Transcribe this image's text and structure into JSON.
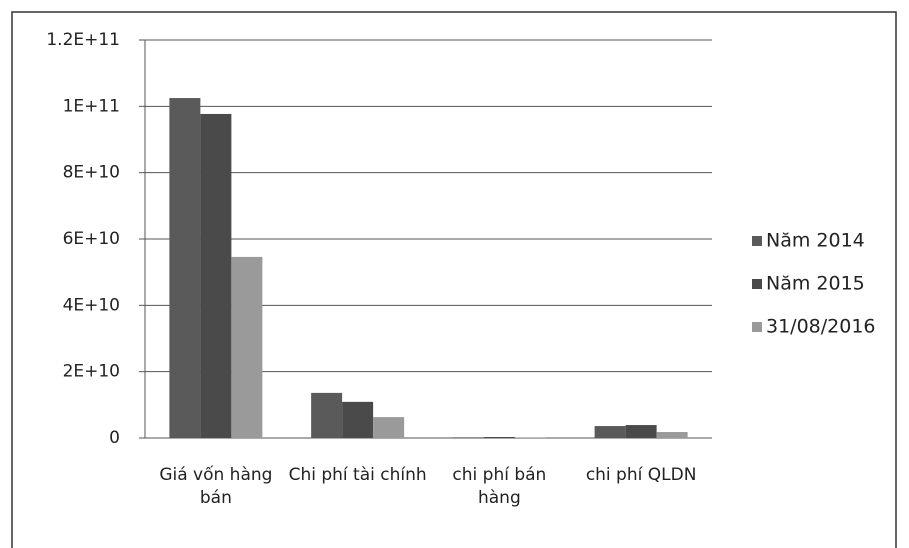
{
  "chart_data": {
    "type": "bar",
    "categories": [
      "Giá vốn hàng bán",
      "Chi phí tài chính",
      "chi phí bán hàng",
      "chi phí QLDN"
    ],
    "series": [
      {
        "name": "Năm 2014",
        "color": "#5a5a5a",
        "values": [
          102500000000,
          13600000000,
          200000000,
          3600000000
        ]
      },
      {
        "name": "Năm 2015",
        "color": "#4a4a4a",
        "values": [
          97700000000,
          10900000000,
          300000000,
          3900000000
        ]
      },
      {
        "name": "31/08/2016",
        "color": "#9a9a9a",
        "values": [
          54600000000,
          6300000000,
          100000000,
          1800000000
        ]
      }
    ],
    "ylim": [
      0,
      120000000000
    ],
    "yticks": [
      0,
      {
        "value": 20000000000,
        "label": "2E+10"
      },
      {
        "value": 40000000000,
        "label": "4E+10"
      },
      {
        "value": 60000000000,
        "label": "6E+10"
      },
      {
        "value": 80000000000,
        "label": "8E+10"
      },
      {
        "value": 100000000000,
        "label": "1E+11"
      },
      {
        "value": 120000000000,
        "label": "1.2E+11"
      }
    ],
    "grid": true,
    "legend": "right"
  }
}
